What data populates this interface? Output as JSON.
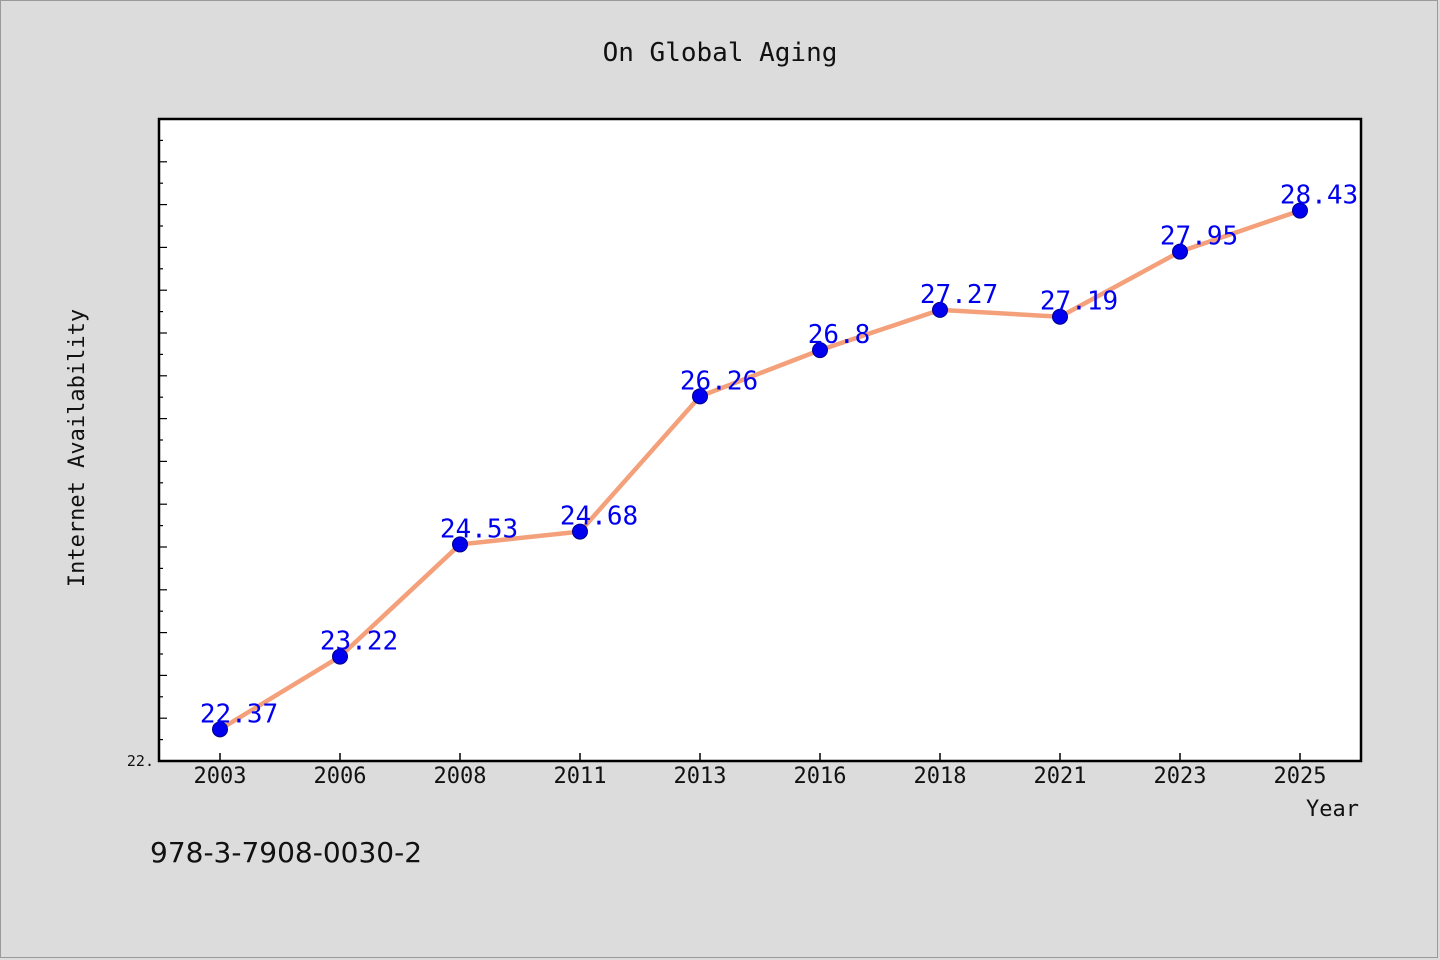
{
  "chart_data": {
    "type": "line",
    "title": "On Global Aging",
    "xlabel": "Year",
    "ylabel": "Internet Availability",
    "categories": [
      "2003",
      "2006",
      "2008",
      "2011",
      "2013",
      "2016",
      "2018",
      "2021",
      "2023",
      "2025"
    ],
    "series": [
      {
        "values": [
          22.37,
          23.22,
          24.53,
          24.68,
          26.26,
          26.8,
          27.27,
          27.19,
          27.95,
          28.43
        ],
        "labels": [
          "22.37",
          "23.22",
          "24.53",
          "24.68",
          "26.26",
          "26.8",
          "27.27",
          "27.19",
          "27.95",
          "28.43"
        ],
        "line_color": "#f4a07a",
        "marker_color": "#0000ee"
      }
    ],
    "ylim": [
      22.0,
      29.5
    ],
    "ytick_label": "22.",
    "grid": false,
    "legend": "none"
  },
  "footer": {
    "text": "978-3-7908-0030-2"
  }
}
